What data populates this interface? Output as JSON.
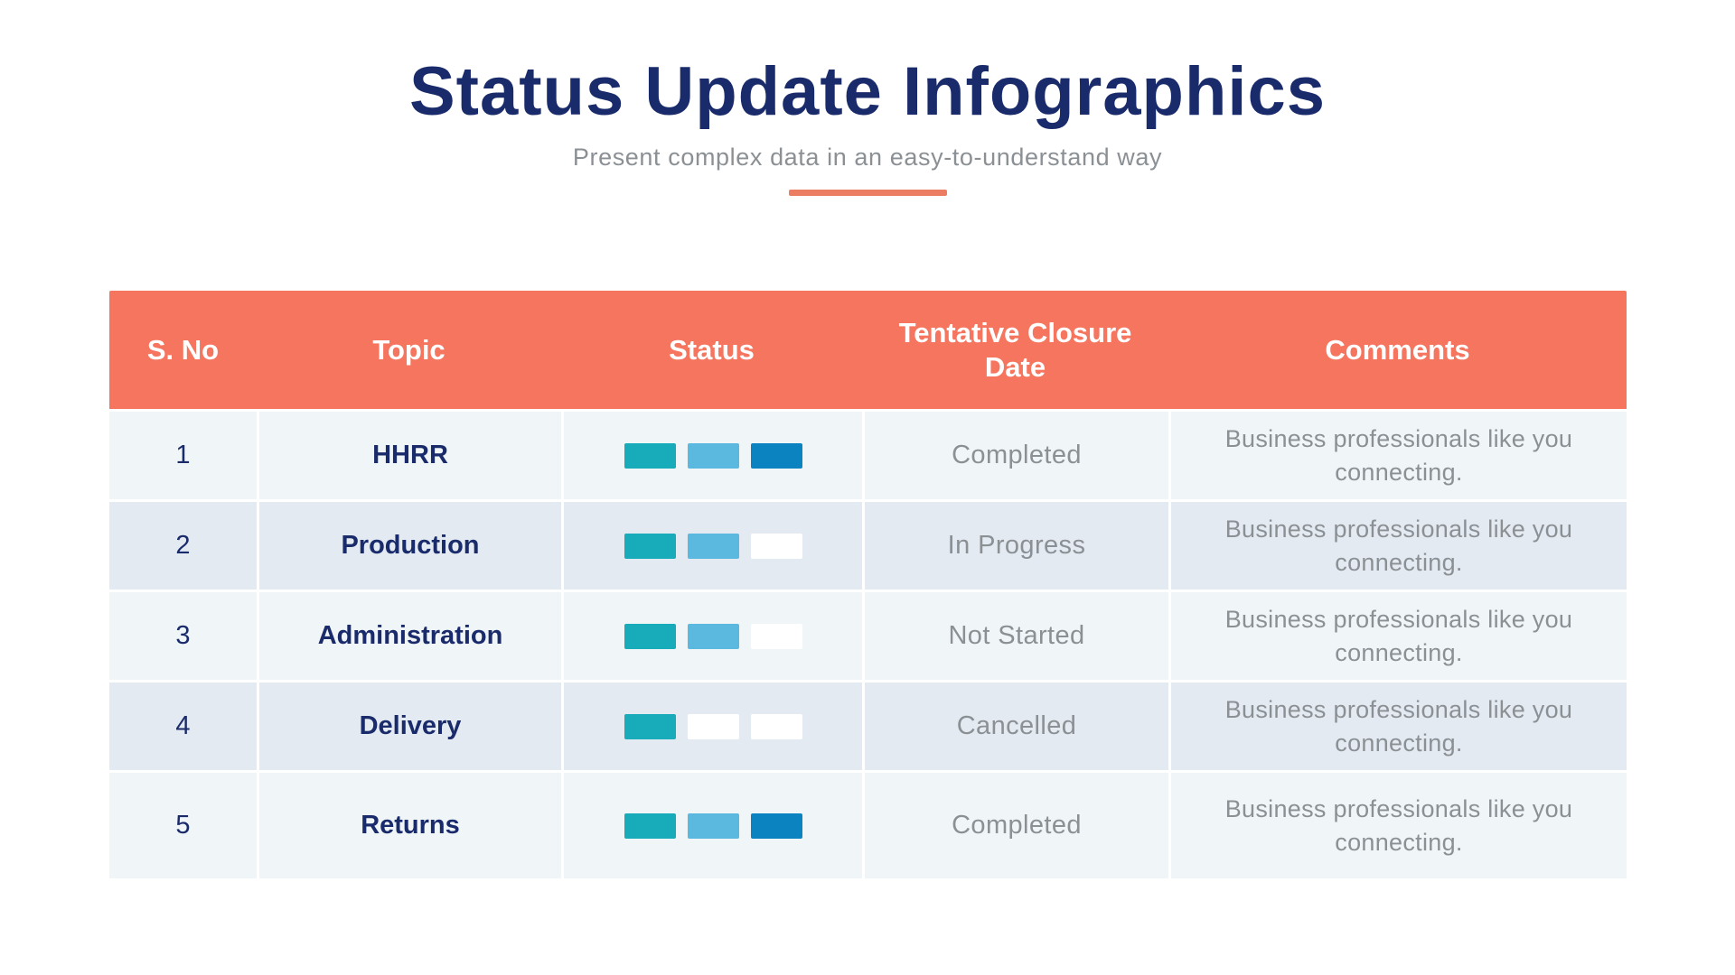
{
  "header": {
    "title": "Status Update Infographics",
    "subtitle": "Present complex data in an easy-to-understand way"
  },
  "colors": {
    "accent_orange": "#F5755F",
    "underline_orange": "#EB7E62",
    "navy_text": "#1A2B6B",
    "gray_text": "#8B9095",
    "row_light": "#F0F5F7",
    "row_dark": "#E4EAF1",
    "status_teal": "#18ACBA",
    "status_sky": "#5BB8DE",
    "status_blue": "#0C83C1",
    "status_empty": "#FFFFFF"
  },
  "table": {
    "headers": [
      "S. No",
      "Topic",
      "Status",
      "Tentative Closure Date",
      "Comments"
    ],
    "rows": [
      {
        "sno": "1",
        "topic": "HHRR",
        "status_segments": [
          "teal",
          "sky",
          "blue"
        ],
        "closure": "Completed",
        "comments": "Business professionals like you connecting."
      },
      {
        "sno": "2",
        "topic": "Production",
        "status_segments": [
          "teal",
          "sky",
          "empty"
        ],
        "closure": "In Progress",
        "comments": "Business professionals like you connecting."
      },
      {
        "sno": "3",
        "topic": "Administration",
        "status_segments": [
          "teal",
          "sky",
          "empty"
        ],
        "closure": "Not Started",
        "comments": "Business professionals like you connecting."
      },
      {
        "sno": "4",
        "topic": "Delivery",
        "status_segments": [
          "teal",
          "empty",
          "empty"
        ],
        "closure": "Cancelled",
        "comments": "Business professionals like you connecting."
      },
      {
        "sno": "5",
        "topic": "Returns",
        "status_segments": [
          "teal",
          "sky",
          "blue"
        ],
        "closure": "Completed",
        "comments": "Business professionals like you connecting."
      }
    ]
  },
  "chart_data": {
    "type": "table",
    "title": "Status Update Infographics",
    "subtitle": "Present complex data in an easy-to-understand way",
    "columns": [
      "S. No",
      "Topic",
      "Status",
      "Tentative Closure Date",
      "Comments"
    ],
    "rows": [
      [
        "1",
        "HHRR",
        "3 of 3 segments filled",
        "Completed",
        "Business professionals like you connecting."
      ],
      [
        "2",
        "Production",
        "2 of 3 segments filled",
        "In Progress",
        "Business professionals like you connecting."
      ],
      [
        "3",
        "Administration",
        "2 of 3 segments filled",
        "Not Started",
        "Business professionals like you connecting."
      ],
      [
        "4",
        "Delivery",
        "1 of 3 segments filled",
        "Cancelled",
        "Business professionals like you connecting."
      ],
      [
        "5",
        "Returns",
        "3 of 3 segments filled",
        "Completed",
        "Business professionals like you connecting."
      ]
    ],
    "layout_hints": {
      "header_bg": "#F5755F",
      "alternating_rows": true,
      "legend": "none"
    }
  }
}
